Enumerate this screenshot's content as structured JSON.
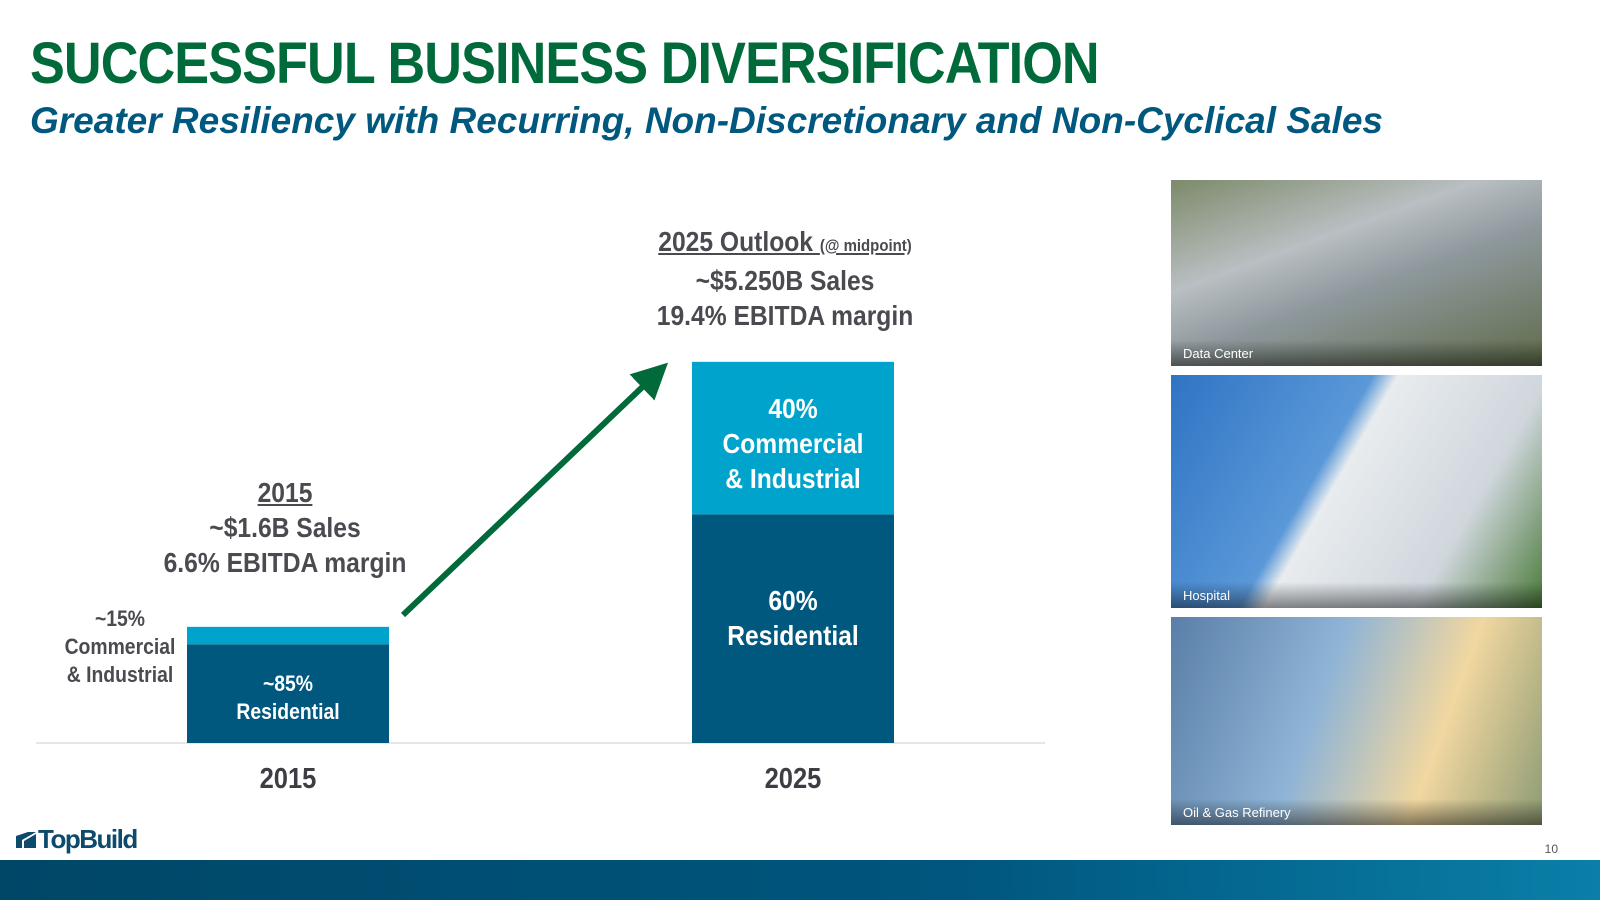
{
  "header": {
    "title": "SUCCESSFUL BUSINESS DIVERSIFICATION",
    "subtitle": "Greater Resiliency with Recurring, Non-Discretionary and Non-Cyclical Sales"
  },
  "annotations": {
    "y2015": {
      "year": "2015",
      "sales": "~$1.6B Sales",
      "margin": "6.6% EBITDA margin"
    },
    "y2025": {
      "year": "2025 Outlook",
      "note": "(@ midpoint)",
      "sales": "~$5.250B Sales",
      "margin": "19.4% EBITDA margin"
    },
    "ci_2015_label": [
      "~15%",
      "Commercial",
      "& Industrial"
    ],
    "res_2015_label": [
      "~85%",
      "Residential"
    ],
    "ci_2025_label": [
      "40%",
      "Commercial",
      "& Industrial"
    ],
    "res_2025_label": [
      "60%",
      "Residential"
    ]
  },
  "chart_data": {
    "type": "bar",
    "stacked": true,
    "categories": [
      "2015",
      "2025"
    ],
    "totals_billion_usd": [
      1.6,
      5.25
    ],
    "series": [
      {
        "name": "Residential",
        "share_pct": [
          85,
          60
        ],
        "color": "#00587f"
      },
      {
        "name": "Commercial & Industrial",
        "share_pct": [
          15,
          40
        ],
        "color": "#00a3cc"
      }
    ],
    "growth_arrow_color": "#006a3b",
    "grid": false
  },
  "photos": [
    {
      "label": "Data Center"
    },
    {
      "label": "Hospital"
    },
    {
      "label": "Oil & Gas Refinery"
    }
  ],
  "footer": {
    "logo": "TopBuild",
    "page": "10"
  }
}
